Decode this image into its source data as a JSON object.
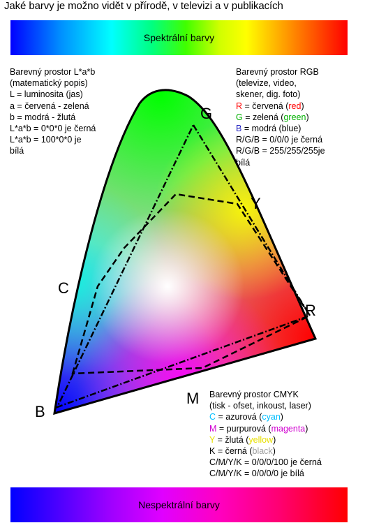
{
  "title": "Jaké barvy je možno vidět v přírodě, v televizi a v publikacích",
  "bars": {
    "top_label": "Spektrální barvy",
    "bottom_label": "Nespektrální barvy"
  },
  "vertex_labels": {
    "G": "G",
    "Y": "Y",
    "C": "C",
    "R": "R",
    "M": "M",
    "B": "B"
  },
  "lab": {
    "lines": [
      "Barevný prostor L*a*b",
      "(matematický popis)",
      "L = luminosita (jas)",
      "a = červená - zelená",
      "b = modrá - žlutá",
      "L*a*b = 0*0*0 je černá",
      "L*a*b = 100*0*0 je",
      "bílá"
    ]
  },
  "rgb": {
    "heading": [
      "Barevný prostor RGB",
      "(televize, video,",
      "skener, dig. foto)"
    ],
    "r": {
      "letter": "R",
      "text": " = červená (",
      "word": "red",
      "end": ")"
    },
    "g": {
      "letter": "G",
      "text": " = zelená (",
      "word": "green",
      "end": ")"
    },
    "b": {
      "letter": "B",
      "text": " = modrá (blue)"
    },
    "tail": [
      "R/G/B = 0/0/0 je černá",
      "R/G/B = 255/255/255je",
      "bílá"
    ]
  },
  "cmyk": {
    "heading": [
      "Barevný prostor CMYK",
      "(tisk - ofset, inkoust, laser)"
    ],
    "c": {
      "letter": "C",
      "text": " = azurová (",
      "word": "cyan",
      "end": ")"
    },
    "m": {
      "letter": "M",
      "text": " = purpurová (",
      "word": "magenta",
      "end": ")"
    },
    "y": {
      "letter": "Y",
      "text": " = žlutá (",
      "word": "yellow",
      "end": ")"
    },
    "k": {
      "letter": "K",
      "text": " = černá (",
      "word": "black",
      "end": ")"
    },
    "tail": [
      "C/M/Y/K = 0/0/0/100 je černá",
      "C/M/Y/K = 0/0/0/0 je bílá"
    ]
  },
  "colors": {
    "red": "#ff0000",
    "green": "#00b000",
    "blue": "#2020c0",
    "cyan": "#00bfff",
    "magenta": "#d000d0",
    "yellow": "#e8e000",
    "black_label": "#a0a0a0"
  }
}
